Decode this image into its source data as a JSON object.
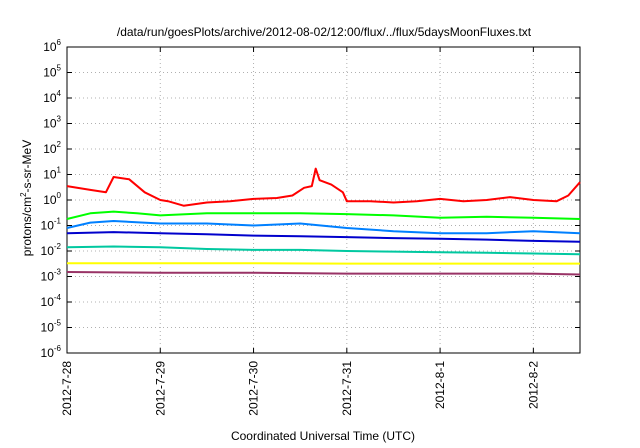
{
  "chart_data": {
    "type": "line",
    "title": "/data/run/goesPlots/archive/2012-08-02/12:00/flux/../flux/5daysMoonFluxes.txt",
    "xlabel": "Coordinated Universal Time (UTC)",
    "ylabel": {
      "pre": "protons/cm",
      "sup": "2",
      "post": "-s-sr-MeV"
    },
    "yscale": "log",
    "ylim": [
      1e-06,
      1000000.0
    ],
    "y_ticks": [
      {
        "value": 1e-06,
        "base": "10",
        "exp": "-6"
      },
      {
        "value": 1e-05,
        "base": "10",
        "exp": "-5"
      },
      {
        "value": 0.0001,
        "base": "10",
        "exp": "-4"
      },
      {
        "value": 0.001,
        "base": "10",
        "exp": "-3"
      },
      {
        "value": 0.01,
        "base": "10",
        "exp": "-2"
      },
      {
        "value": 0.1,
        "base": "10",
        "exp": "-1"
      },
      {
        "value": 1,
        "base": "10",
        "exp": "0"
      },
      {
        "value": 10,
        "base": "10",
        "exp": "1"
      },
      {
        "value": 100,
        "base": "10",
        "exp": "2"
      },
      {
        "value": 1000,
        "base": "10",
        "exp": "3"
      },
      {
        "value": 10000,
        "base": "10",
        "exp": "4"
      },
      {
        "value": 100000,
        "base": "10",
        "exp": "5"
      },
      {
        "value": 1000000,
        "base": "10",
        "exp": "6"
      }
    ],
    "x_range": [
      "2012-7-28",
      "2012-8-2 12:00"
    ],
    "x_ticks": [
      "2012-7-28",
      "2012-7-29",
      "2012-7-30",
      "2012-7-31",
      "2012-8-1",
      "2012-8-2"
    ],
    "grid": true,
    "series": [
      {
        "color": "#ff0000",
        "points": [
          [
            "2012-7-28 00:00",
            3.5
          ],
          [
            "2012-7-28 06:00",
            2.5
          ],
          [
            "2012-7-28 10:00",
            2.0
          ],
          [
            "2012-7-28 12:00",
            8.0
          ],
          [
            "2012-7-28 16:00",
            6.5
          ],
          [
            "2012-7-28 20:00",
            2.0
          ],
          [
            "2012-7-29 00:00",
            1.0
          ],
          [
            "2012-7-29 02:00",
            0.9
          ],
          [
            "2012-7-29 06:00",
            0.6
          ],
          [
            "2012-7-29 12:00",
            0.8
          ],
          [
            "2012-7-29 18:00",
            0.9
          ],
          [
            "2012-7-30 00:00",
            1.1
          ],
          [
            "2012-7-30 06:00",
            1.2
          ],
          [
            "2012-7-30 10:00",
            1.5
          ],
          [
            "2012-7-30 13:00",
            3.0
          ],
          [
            "2012-7-30 15:00",
            3.5
          ],
          [
            "2012-7-30 16:00",
            17.0
          ],
          [
            "2012-7-30 17:00",
            6.0
          ],
          [
            "2012-7-30 20:00",
            4.0
          ],
          [
            "2012-7-30 23:00",
            2.0
          ],
          [
            "2012-7-31 00:00",
            0.9
          ],
          [
            "2012-7-31 06:00",
            0.9
          ],
          [
            "2012-7-31 12:00",
            0.8
          ],
          [
            "2012-7-31 18:00",
            0.9
          ],
          [
            "2012-8-1 00:00",
            1.1
          ],
          [
            "2012-8-1 06:00",
            0.9
          ],
          [
            "2012-8-1 12:00",
            1.0
          ],
          [
            "2012-8-1 18:00",
            1.3
          ],
          [
            "2012-8-2 00:00",
            1.0
          ],
          [
            "2012-8-2 06:00",
            0.9
          ],
          [
            "2012-8-2 09:00",
            1.5
          ],
          [
            "2012-8-2 12:00",
            5.0
          ]
        ]
      },
      {
        "color": "#00ff00",
        "points": [
          [
            "2012-7-28 00:00",
            0.18
          ],
          [
            "2012-7-28 06:00",
            0.3
          ],
          [
            "2012-7-28 12:00",
            0.35
          ],
          [
            "2012-7-28 18:00",
            0.3
          ],
          [
            "2012-7-29 00:00",
            0.25
          ],
          [
            "2012-7-29 12:00",
            0.3
          ],
          [
            "2012-7-30 00:00",
            0.3
          ],
          [
            "2012-7-30 12:00",
            0.3
          ],
          [
            "2012-7-31 00:00",
            0.28
          ],
          [
            "2012-7-31 12:00",
            0.25
          ],
          [
            "2012-8-1 00:00",
            0.2
          ],
          [
            "2012-8-1 12:00",
            0.22
          ],
          [
            "2012-8-2 00:00",
            0.2
          ],
          [
            "2012-8-2 12:00",
            0.18
          ]
        ]
      },
      {
        "color": "#0080ff",
        "points": [
          [
            "2012-7-28 00:00",
            0.08
          ],
          [
            "2012-7-28 06:00",
            0.13
          ],
          [
            "2012-7-28 12:00",
            0.15
          ],
          [
            "2012-7-29 00:00",
            0.12
          ],
          [
            "2012-7-29 12:00",
            0.12
          ],
          [
            "2012-7-30 00:00",
            0.1
          ],
          [
            "2012-7-30 12:00",
            0.12
          ],
          [
            "2012-7-31 00:00",
            0.08
          ],
          [
            "2012-7-31 12:00",
            0.06
          ],
          [
            "2012-8-1 00:00",
            0.05
          ],
          [
            "2012-8-1 12:00",
            0.05
          ],
          [
            "2012-8-2 00:00",
            0.06
          ],
          [
            "2012-8-2 12:00",
            0.05
          ]
        ]
      },
      {
        "color": "#0000cc",
        "points": [
          [
            "2012-7-28 00:00",
            0.05
          ],
          [
            "2012-7-28 12:00",
            0.055
          ],
          [
            "2012-7-29 00:00",
            0.05
          ],
          [
            "2012-7-29 12:00",
            0.045
          ],
          [
            "2012-7-30 00:00",
            0.04
          ],
          [
            "2012-7-30 12:00",
            0.038
          ],
          [
            "2012-7-31 00:00",
            0.035
          ],
          [
            "2012-7-31 12:00",
            0.032
          ],
          [
            "2012-8-1 00:00",
            0.03
          ],
          [
            "2012-8-1 12:00",
            0.028
          ],
          [
            "2012-8-2 00:00",
            0.025
          ],
          [
            "2012-8-2 12:00",
            0.023
          ]
        ]
      },
      {
        "color": "#00c8a0",
        "points": [
          [
            "2012-7-28 00:00",
            0.014
          ],
          [
            "2012-7-28 12:00",
            0.015
          ],
          [
            "2012-7-29 00:00",
            0.014
          ],
          [
            "2012-7-29 12:00",
            0.012
          ],
          [
            "2012-7-30 00:00",
            0.011
          ],
          [
            "2012-7-30 12:00",
            0.011
          ],
          [
            "2012-7-31 00:00",
            0.01
          ],
          [
            "2012-7-31 12:00",
            0.0095
          ],
          [
            "2012-8-1 00:00",
            0.009
          ],
          [
            "2012-8-1 12:00",
            0.0085
          ],
          [
            "2012-8-2 00:00",
            0.008
          ],
          [
            "2012-8-2 12:00",
            0.0075
          ]
        ]
      },
      {
        "color": "#ffff00",
        "points": [
          [
            "2012-7-28 00:00",
            0.0033
          ],
          [
            "2012-7-29 00:00",
            0.0033
          ],
          [
            "2012-7-30 00:00",
            0.0033
          ],
          [
            "2012-7-31 00:00",
            0.0032
          ],
          [
            "2012-8-1 00:00",
            0.0032
          ],
          [
            "2012-8-2 00:00",
            0.0032
          ],
          [
            "2012-8-2 12:00",
            0.0032
          ]
        ]
      },
      {
        "color": "#993366",
        "points": [
          [
            "2012-7-28 00:00",
            0.0015
          ],
          [
            "2012-7-29 00:00",
            0.0014
          ],
          [
            "2012-7-30 00:00",
            0.0014
          ],
          [
            "2012-7-31 00:00",
            0.0013
          ],
          [
            "2012-8-1 00:00",
            0.0013
          ],
          [
            "2012-8-2 00:00",
            0.0013
          ],
          [
            "2012-8-2 12:00",
            0.0012
          ]
        ]
      }
    ]
  }
}
